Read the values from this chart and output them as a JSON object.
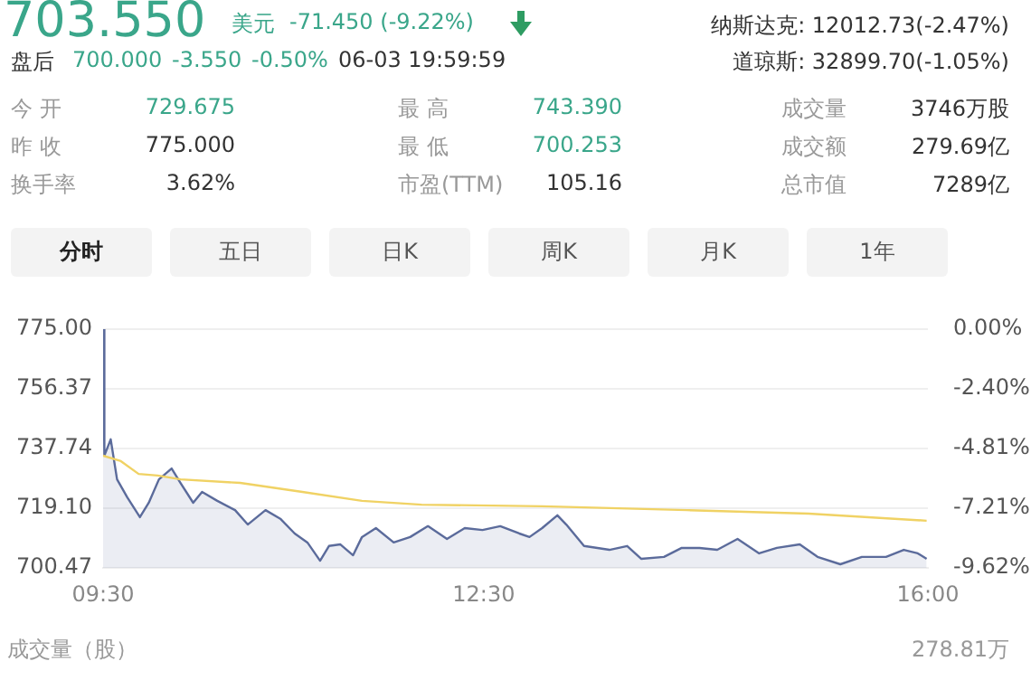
{
  "chart_data": {
    "type": "line",
    "annotations": [
      "703.550",
      "美元",
      "-71.450 (-9.22%)",
      "纳斯达克: 12012.73(-2.47%)",
      "盘后",
      "700.000",
      "-3.550",
      "-0.50%",
      "06-03 19:59:59",
      "道琼斯: 32899.70(-1.05%)",
      "今 开",
      "729.675",
      "最 高",
      "743.390",
      "成交量",
      "3746万股",
      "昨 收",
      "775.000",
      "最 低",
      "700.253",
      "成交额",
      "279.69亿",
      "换手率",
      "3.62%",
      "市盈(TTM)",
      "105.16",
      "总市值",
      "7289亿",
      "分时",
      "五日",
      "日K",
      "周K",
      "月K",
      "1年",
      "成交量（股）",
      "278.81万"
    ],
    "series": [
      {
        "type": "area",
        "color": "#5b6b9b",
        "x": [
          9.5,
          9.51,
          9.56,
          9.61,
          9.69,
          9.79,
          9.86,
          9.94,
          10.04,
          10.11,
          10.21,
          10.28,
          10.4,
          10.54,
          10.64,
          10.78,
          10.9,
          11.01,
          11.11,
          11.21,
          11.28,
          11.37,
          11.47,
          11.54,
          11.65,
          11.79,
          11.92,
          12.06,
          12.21,
          12.35,
          12.49,
          12.63,
          12.78,
          12.86,
          12.96,
          13.08,
          13.15,
          13.29,
          13.49,
          13.63,
          13.74,
          13.92,
          14.06,
          14.2,
          14.34,
          14.5,
          14.67,
          14.81,
          14.99,
          15.13,
          15.31,
          15.48,
          15.67,
          15.81,
          15.92,
          15.99
        ],
        "values": [
          775,
          735.5,
          740.6,
          728.1,
          722.5,
          716.3,
          720.8,
          728.1,
          731.5,
          727,
          720.8,
          724.2,
          721.4,
          718.5,
          714,
          718.5,
          715.7,
          711.2,
          708.4,
          702.7,
          707.3,
          707.8,
          704.4,
          710.1,
          712.9,
          708.4,
          710.1,
          713.5,
          709.5,
          712.9,
          712.3,
          713.5,
          711.2,
          710.1,
          712.9,
          716.9,
          714,
          707.3,
          706.1,
          707.3,
          703.3,
          703.9,
          706.7,
          706.7,
          706.1,
          709.5,
          705,
          706.7,
          707.8,
          703.9,
          701.6,
          703.9,
          703.9,
          706.1,
          705,
          703.3
        ]
      },
      {
        "type": "line",
        "color": "#f0d264",
        "x": [
          9.5,
          9.64,
          9.78,
          9.93,
          10.11,
          10.58,
          11.07,
          11.54,
          12.01,
          12.96,
          14.1,
          15.06,
          15.99
        ],
        "values": [
          735.5,
          733.8,
          729.8,
          729.3,
          728.1,
          727,
          724.2,
          721.4,
          720.2,
          719.7,
          718.5,
          717.4,
          715.2
        ]
      }
    ],
    "xlim": [
      9.5,
      16
    ],
    "xticks": [
      {
        "value": 9.5,
        "label": "09:30"
      },
      {
        "value": 12.5,
        "label": "12:30"
      },
      {
        "value": 16,
        "label": "16:00"
      }
    ],
    "ylim": [
      700.47,
      775
    ],
    "yticks": [
      {
        "value": 700.47,
        "label": "700.47"
      },
      {
        "value": 719.1,
        "label": "719.10"
      },
      {
        "value": 737.74,
        "label": "737.74"
      },
      {
        "value": 756.37,
        "label": "756.37"
      },
      {
        "value": 775,
        "label": "775.00"
      }
    ],
    "y2lim": [
      -9.62,
      0
    ],
    "y2ticks": [
      {
        "value": -9.62,
        "label": "-9.62%"
      },
      {
        "value": -7.21,
        "label": "-7.21%"
      },
      {
        "value": -4.81,
        "label": "-4.81%"
      },
      {
        "value": -2.4,
        "label": "-2.40%"
      },
      {
        "value": 0,
        "label": "0.00%"
      }
    ],
    "grid": "y",
    "legend": false,
    "marker": "none",
    "line_style": "solid"
  }
}
